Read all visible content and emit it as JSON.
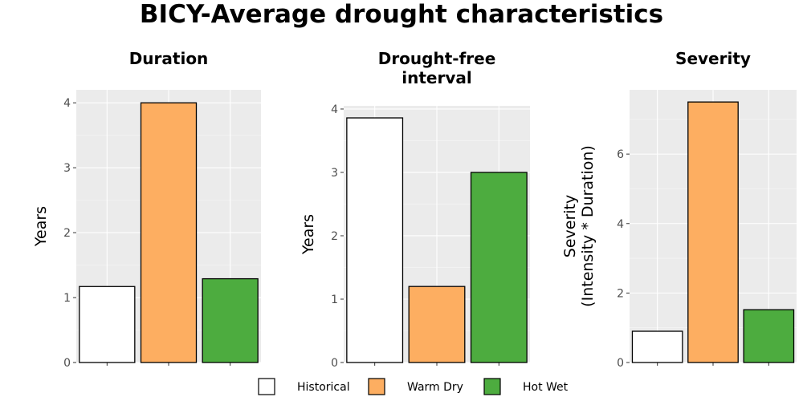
{
  "title": "BICY-Average drought characteristics",
  "colors": {
    "Historical": "#ffffff",
    "Warm Dry": "#fdae61",
    "Hot Wet": "#4dac3f",
    "panel_background": "#ebebeb",
    "bar_outline": "#000000"
  },
  "legend": {
    "items": [
      "Historical",
      "Warm Dry",
      "Hot Wet"
    ],
    "placement": "bottom"
  },
  "chart_data": [
    {
      "type": "bar",
      "title": [
        "Duration"
      ],
      "ylabel": [
        "Years"
      ],
      "categories": [
        "Historical",
        "Warm Dry",
        "Hot Wet"
      ],
      "values": [
        1.17,
        4.0,
        1.29
      ],
      "ylim": [
        0,
        4.2
      ],
      "yticks": [
        0,
        1,
        2,
        3,
        4
      ],
      "grid": true
    },
    {
      "type": "bar",
      "title": [
        "Drought-free",
        "interval"
      ],
      "ylabel": [
        "Years"
      ],
      "categories": [
        "Historical",
        "Warm Dry",
        "Hot Wet"
      ],
      "values": [
        3.86,
        1.2,
        3.0
      ],
      "ylim": [
        0,
        4.05
      ],
      "yticks": [
        0,
        1,
        2,
        3,
        4
      ],
      "grid": true
    },
    {
      "type": "bar",
      "title": [
        "Severity"
      ],
      "ylabel": [
        "Severity",
        "(Intensity * Duration)"
      ],
      "categories": [
        "Historical",
        "Warm Dry",
        "Hot Wet"
      ],
      "values": [
        0.9,
        7.5,
        1.52
      ],
      "ylim": [
        0,
        7.85
      ],
      "yticks": [
        0,
        2,
        4,
        6
      ],
      "grid": true
    }
  ]
}
